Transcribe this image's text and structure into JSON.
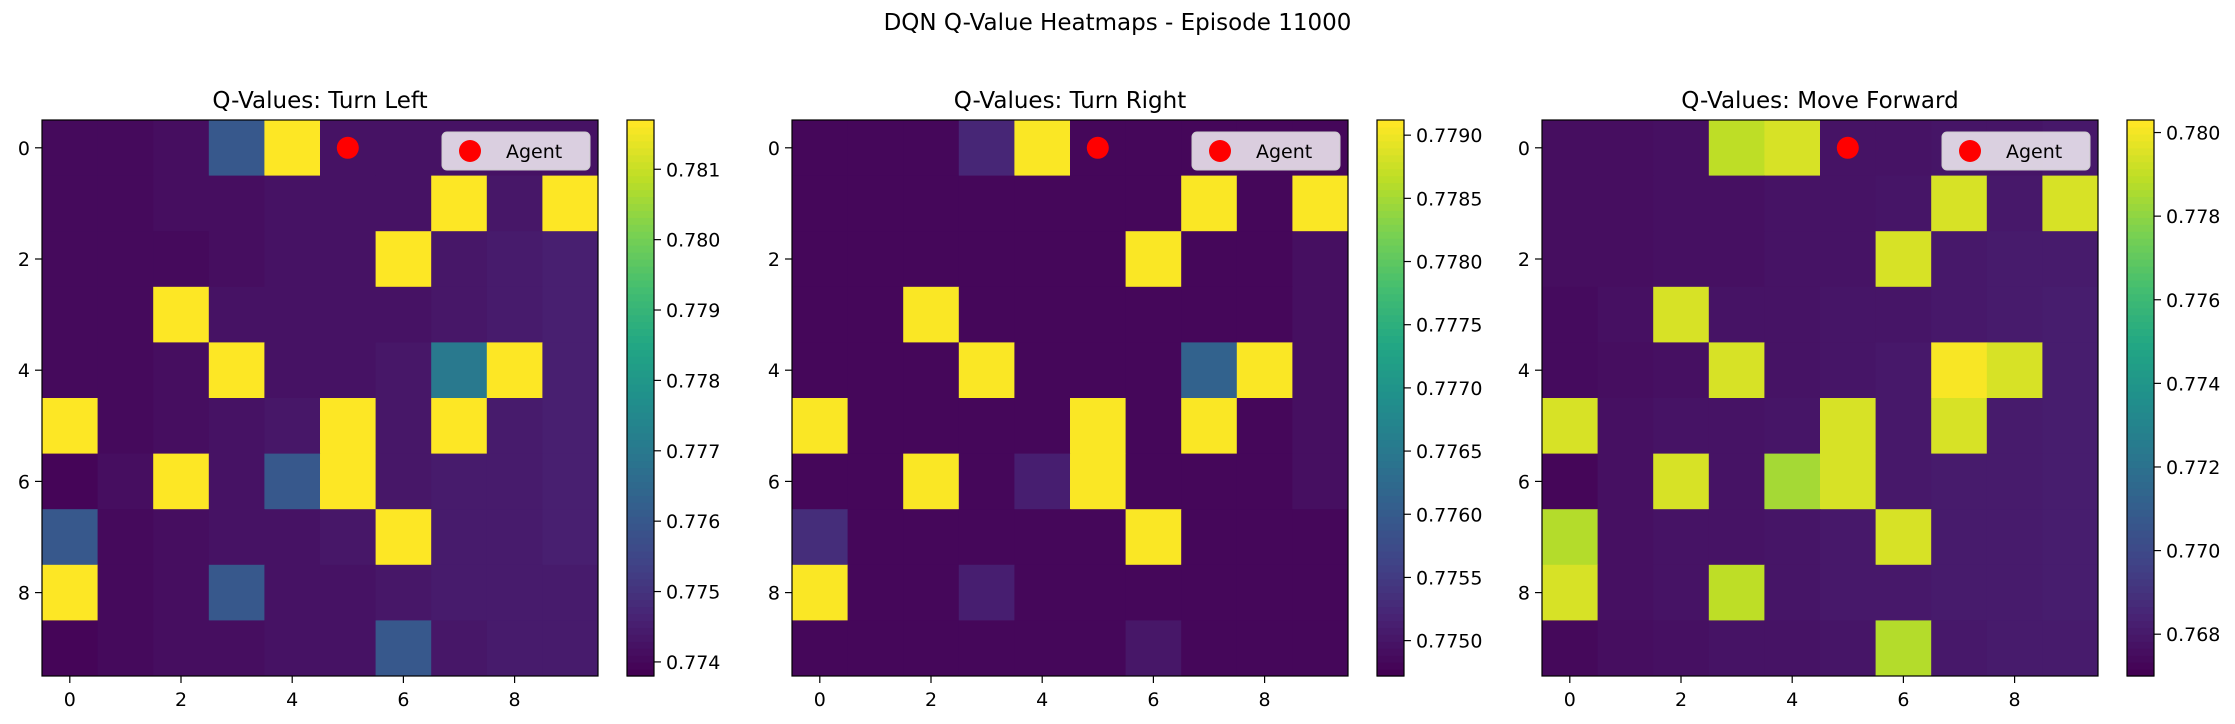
{
  "figure": {
    "suptitle": "DQN Q-Value Heatmaps - Episode 11000"
  },
  "chart_data": [
    {
      "type": "heatmap",
      "title": "Q-Values: Turn Left",
      "colormap": "viridis",
      "grid": false,
      "legend": {
        "entries": [
          "Agent"
        ],
        "placement": "top-right"
      },
      "agent": {
        "x": 5,
        "y": 0,
        "color": "#ff0000"
      },
      "x_ticks": [
        0,
        2,
        4,
        6,
        8
      ],
      "y_ticks": [
        0,
        2,
        4,
        6,
        8
      ],
      "color_range": [
        0.7738,
        0.7817
      ],
      "colorbar_ticks": [
        "0.774",
        "0.775",
        "0.776",
        "0.777",
        "0.778",
        "0.779",
        "0.780",
        "0.781"
      ],
      "values": [
        [
          0.774,
          0.774,
          0.7741,
          0.776,
          0.7817,
          0.7742,
          0.7742,
          0.7742,
          0.7742,
          0.7742
        ],
        [
          0.774,
          0.774,
          0.7741,
          0.7741,
          0.7742,
          0.7742,
          0.7742,
          0.7817,
          0.7743,
          0.7817
        ],
        [
          0.774,
          0.774,
          0.774,
          0.7741,
          0.7742,
          0.7742,
          0.7817,
          0.7743,
          0.7744,
          0.7745
        ],
        [
          0.774,
          0.774,
          0.7817,
          0.7742,
          0.7742,
          0.7742,
          0.7742,
          0.7743,
          0.7744,
          0.7745
        ],
        [
          0.774,
          0.774,
          0.7741,
          0.7817,
          0.7742,
          0.7742,
          0.7743,
          0.777,
          0.7817,
          0.7745
        ],
        [
          0.7817,
          0.774,
          0.7741,
          0.7742,
          0.7743,
          0.7817,
          0.7743,
          0.7817,
          0.7744,
          0.7745
        ],
        [
          0.7739,
          0.7741,
          0.7817,
          0.7742,
          0.776,
          0.7817,
          0.7743,
          0.7744,
          0.7744,
          0.7745
        ],
        [
          0.776,
          0.774,
          0.7741,
          0.7742,
          0.7742,
          0.7743,
          0.7817,
          0.7744,
          0.7744,
          0.7745
        ],
        [
          0.7817,
          0.774,
          0.7741,
          0.776,
          0.7742,
          0.7742,
          0.7743,
          0.7744,
          0.7744,
          0.7744
        ],
        [
          0.7739,
          0.774,
          0.7741,
          0.7741,
          0.7742,
          0.7742,
          0.776,
          0.7743,
          0.7744,
          0.7744
        ]
      ]
    },
    {
      "type": "heatmap",
      "title": "Q-Values: Turn Right",
      "colormap": "viridis",
      "grid": false,
      "legend": {
        "entries": [
          "Agent"
        ],
        "placement": "top-right"
      },
      "agent": {
        "x": 5,
        "y": 0,
        "color": "#ff0000"
      },
      "x_ticks": [
        0,
        2,
        4,
        6,
        8
      ],
      "y_ticks": [
        0,
        2,
        4,
        6,
        8
      ],
      "color_range": [
        0.77472,
        0.77912
      ],
      "colorbar_ticks": [
        "0.7750",
        "0.7755",
        "0.7760",
        "0.7765",
        "0.7770",
        "0.7775",
        "0.7780",
        "0.7785",
        "0.7790"
      ],
      "values": [
        [
          0.7748,
          0.7748,
          0.7748,
          0.7752,
          0.7791,
          0.7748,
          0.7748,
          0.7748,
          0.7748,
          0.7748
        ],
        [
          0.7748,
          0.7748,
          0.7748,
          0.7748,
          0.7748,
          0.7748,
          0.7748,
          0.7791,
          0.7748,
          0.7791
        ],
        [
          0.7748,
          0.7748,
          0.7748,
          0.7748,
          0.7748,
          0.7748,
          0.7791,
          0.7748,
          0.7748,
          0.7749
        ],
        [
          0.7748,
          0.7748,
          0.7791,
          0.7748,
          0.7748,
          0.7748,
          0.7748,
          0.7748,
          0.7748,
          0.7749
        ],
        [
          0.7748,
          0.7748,
          0.7748,
          0.7791,
          0.7748,
          0.7748,
          0.7748,
          0.7761,
          0.7791,
          0.7749
        ],
        [
          0.7791,
          0.7748,
          0.7748,
          0.7748,
          0.7748,
          0.7791,
          0.7748,
          0.7791,
          0.7748,
          0.7749
        ],
        [
          0.7748,
          0.7748,
          0.7791,
          0.7748,
          0.7751,
          0.7791,
          0.7748,
          0.7748,
          0.7748,
          0.7749
        ],
        [
          0.7753,
          0.7748,
          0.7748,
          0.7748,
          0.7748,
          0.7748,
          0.7791,
          0.7748,
          0.7748,
          0.7748
        ],
        [
          0.7791,
          0.7748,
          0.7748,
          0.7751,
          0.7748,
          0.7748,
          0.7748,
          0.7748,
          0.7748,
          0.7748
        ],
        [
          0.7748,
          0.7748,
          0.7748,
          0.7748,
          0.7748,
          0.7748,
          0.775,
          0.7748,
          0.7748,
          0.7748
        ]
      ]
    },
    {
      "type": "heatmap",
      "title": "Q-Values: Move Forward",
      "colormap": "viridis",
      "grid": false,
      "legend": {
        "entries": [
          "Agent"
        ],
        "placement": "top-right"
      },
      "agent": {
        "x": 5,
        "y": 0,
        "color": "#ff0000"
      },
      "x_ticks": [
        0,
        2,
        4,
        6,
        8
      ],
      "y_ticks": [
        0,
        2,
        4,
        6,
        8
      ],
      "color_range": [
        0.767,
        0.7803
      ],
      "colorbar_ticks": [
        "0.768",
        "0.770",
        "0.772",
        "0.774",
        "0.776",
        "0.778",
        "0.780"
      ],
      "values": [
        [
          0.7675,
          0.7675,
          0.7676,
          0.779,
          0.7795,
          0.7677,
          0.7677,
          0.7678,
          0.7678,
          0.7679
        ],
        [
          0.7675,
          0.7675,
          0.7676,
          0.7676,
          0.7677,
          0.7677,
          0.7678,
          0.7795,
          0.7679,
          0.7795
        ],
        [
          0.7675,
          0.7675,
          0.7676,
          0.7676,
          0.7677,
          0.7677,
          0.7795,
          0.7679,
          0.768,
          0.768
        ],
        [
          0.7674,
          0.7676,
          0.7795,
          0.7677,
          0.7677,
          0.7678,
          0.7678,
          0.7679,
          0.768,
          0.7681
        ],
        [
          0.7674,
          0.7675,
          0.7676,
          0.7795,
          0.7677,
          0.7678,
          0.7679,
          0.7802,
          0.7795,
          0.7681
        ],
        [
          0.7795,
          0.7676,
          0.7677,
          0.7677,
          0.7678,
          0.7795,
          0.7679,
          0.7795,
          0.768,
          0.7681
        ],
        [
          0.7672,
          0.7676,
          0.7795,
          0.7677,
          0.7785,
          0.7795,
          0.7679,
          0.768,
          0.768,
          0.7681
        ],
        [
          0.7788,
          0.7676,
          0.7677,
          0.7677,
          0.7678,
          0.7679,
          0.7795,
          0.768,
          0.768,
          0.7681
        ],
        [
          0.7795,
          0.7676,
          0.7677,
          0.779,
          0.7678,
          0.7679,
          0.7679,
          0.768,
          0.768,
          0.7681
        ],
        [
          0.7673,
          0.7675,
          0.7676,
          0.7677,
          0.7677,
          0.7678,
          0.7788,
          0.7679,
          0.768,
          0.768
        ]
      ]
    }
  ]
}
